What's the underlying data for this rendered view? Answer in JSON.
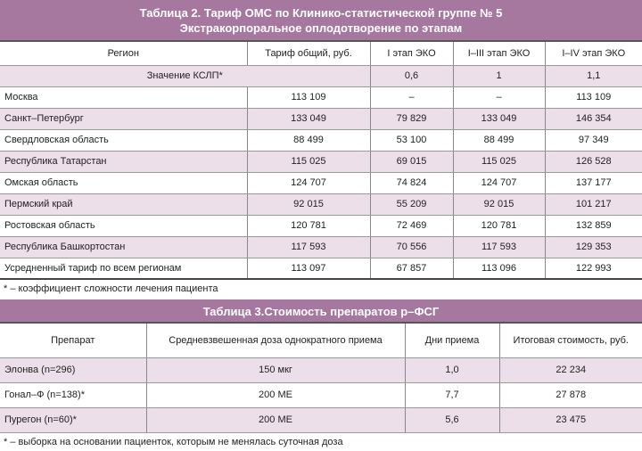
{
  "table2": {
    "title_line1": "Таблица 2. Тариф ОМС по Клинико-статистической группе № 5",
    "title_line2": "Экстракорпоральное оплодотворение по этапам",
    "headers": [
      "Регион",
      "Тариф общий, руб.",
      "I этап ЭКО",
      "I–III этап ЭКО",
      "I–IV этап ЭКО"
    ],
    "kslp": {
      "label": "Значение КСЛП*",
      "values": [
        "0,6",
        "1",
        "1,1"
      ]
    },
    "rows": [
      [
        "Москва",
        "113 109",
        "–",
        "–",
        "113 109"
      ],
      [
        "Санкт–Петербург",
        "133 049",
        "79 829",
        "133 049",
        "146 354"
      ],
      [
        "Свердловская область",
        "88 499",
        "53 100",
        "88 499",
        "97 349"
      ],
      [
        "Республика Татарстан",
        "115 025",
        "69 015",
        "115 025",
        "126 528"
      ],
      [
        "Омская область",
        "124 707",
        "74 824",
        "124 707",
        "137 177"
      ],
      [
        "Пермский край",
        "92 015",
        "55 209",
        "92 015",
        "101 217"
      ],
      [
        "Ростовская область",
        "120 781",
        "72 469",
        "120 781",
        "132 859"
      ],
      [
        "Республика Башкортостан",
        "117 593",
        "70 556",
        "117 593",
        "129 353"
      ],
      [
        "Усредненный тариф по всем регионам",
        "113 097",
        "67 857",
        "113 096",
        "122 993"
      ]
    ],
    "footnote": "* – коэффициент сложности лечения пациента"
  },
  "table3": {
    "title": "Таблица 3.Стоимость препаратов р–ФСГ",
    "headers": [
      "Препарат",
      "Средневзвешенная доза однократного приема",
      "Дни приема",
      "Итоговая стоимость, руб."
    ],
    "rows": [
      [
        "Элонва (n=296)",
        "150 мкг",
        "1,0",
        "22 234"
      ],
      [
        "Гонал–Ф (n=138)*",
        "200 МЕ",
        "7,7",
        "27 878"
      ],
      [
        "Пурегон (n=60)*",
        "200 МЕ",
        "5,6",
        "23 475"
      ]
    ],
    "footnote": "* – выборка на основании пациенток, которым не менялась суточная доза"
  },
  "colors": {
    "header_bg": "#a6779f",
    "row_shade": "#ecdfe9"
  }
}
